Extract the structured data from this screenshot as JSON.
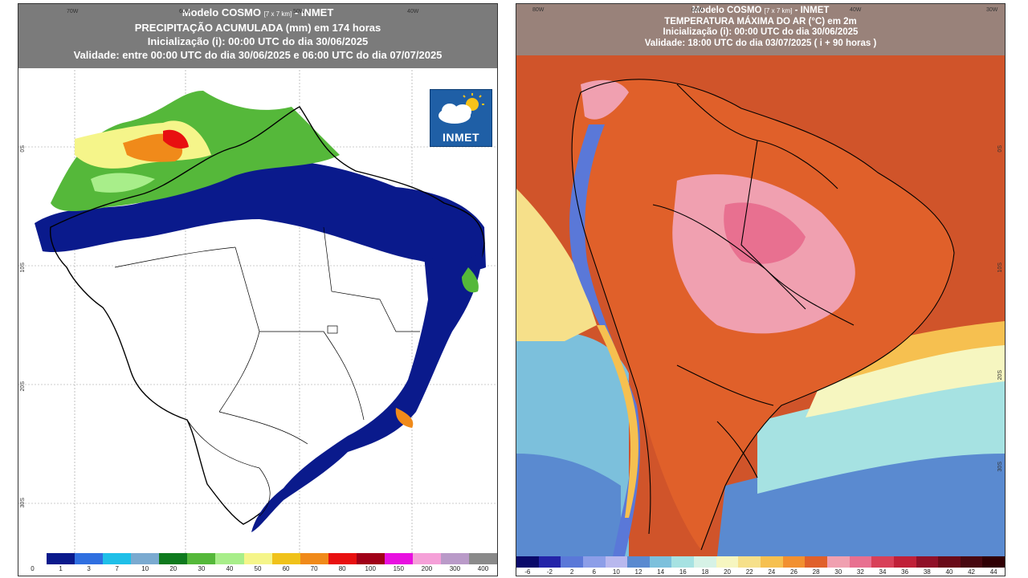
{
  "left_map": {
    "header": {
      "line1_main": "Modelo COSMO ",
      "line1_small": "[7 x 7 km]",
      "line1_tail": " - INMET",
      "line2": "PRECIPITAÇÃO ACUMULADA (mm) em 174 horas",
      "line3": "Inicialização (i): 00:00 UTC do dia 30/06/2025",
      "line4": "Validade: entre 00:00 UTC do dia 30/06/2025 e 06:00 UTC do dia 07/07/2025"
    },
    "top_ticks": [
      "70W",
      "60W",
      "50W",
      "40W"
    ],
    "side_ticks": [
      "0S",
      "10S",
      "20S",
      "30S"
    ],
    "logo_text": "INMET",
    "colorbar": {
      "labels": [
        "0",
        "1",
        "3",
        "7",
        "10",
        "20",
        "30",
        "40",
        "50",
        "60",
        "70",
        "80",
        "100",
        "150",
        "200",
        "300",
        "400"
      ],
      "colors": [
        "#ffffff",
        "#0a1a8c",
        "#2f6fe0",
        "#1fbfe8",
        "#7aaad0",
        "#0f7a1e",
        "#55b83a",
        "#a8ee8a",
        "#f5f58a",
        "#f0c21a",
        "#f08a1a",
        "#e81010",
        "#a00018",
        "#e810e0",
        "#f5a0d8",
        "#b99ac8",
        "#8a8a8a"
      ]
    }
  },
  "right_map": {
    "header": {
      "line1_main": "Modelo COSMO ",
      "line1_small": "[7 x 7 km]",
      "line1_tail": " - INMET",
      "line2": "TEMPERATURA MÁXIMA DO AR (°C) em 2m",
      "line3": "Inicialização (i): 00:00 UTC do dia 30/06/2025",
      "line4": "Validade: 18:00 UTC do dia 03/07/2025 ( i + 90 horas )"
    },
    "top_ticks": [
      "80W",
      "60W",
      "40W",
      "30W"
    ],
    "side_ticks": [
      "0S",
      "10S",
      "20S",
      "30S"
    ],
    "colorbar": {
      "labels": [
        "-6",
        "-2",
        "2",
        "6",
        "10",
        "12",
        "14",
        "16",
        "18",
        "20",
        "22",
        "24",
        "26",
        "28",
        "30",
        "32",
        "34",
        "36",
        "38",
        "40",
        "42",
        "44"
      ],
      "colors": [
        "#0a0a6a",
        "#2424a8",
        "#5a78d8",
        "#8c9ee8",
        "#b8b8ee",
        "#5a8ad0",
        "#7cc0dc",
        "#a6e2e2",
        "#d6f2e6",
        "#f6f6c0",
        "#f6e08a",
        "#f6c050",
        "#f29030",
        "#e0602a",
        "#f0a0b0",
        "#e87090",
        "#d84058",
        "#c02038",
        "#901028",
        "#6a0a18",
        "#480810",
        "#300004"
      ]
    }
  }
}
